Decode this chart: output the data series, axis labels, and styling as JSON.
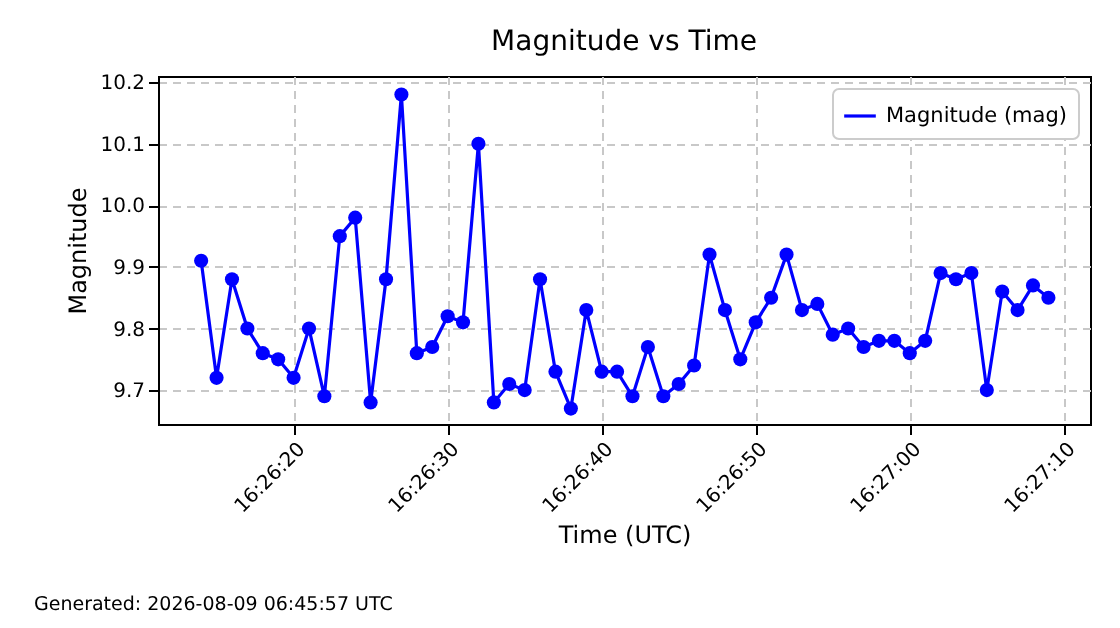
{
  "chart_data": {
    "type": "line",
    "title": "Magnitude vs Time",
    "xlabel": "Time (UTC)",
    "ylabel": "Magnitude",
    "annotations": [
      "Generated: 2026-08-09 06:45:57 UTC"
    ],
    "x": [
      16.437222,
      16.4375,
      16.437778,
      16.438056,
      16.438333,
      16.438611,
      16.438889,
      16.439167,
      16.439444,
      16.439722,
      16.44,
      16.440278,
      16.440556,
      16.440833,
      16.441111,
      16.441389,
      16.441667,
      16.441944,
      16.442222,
      16.4425,
      16.442778,
      16.443056,
      16.443333,
      16.443611,
      16.443889,
      16.444167,
      16.444444,
      16.444722,
      16.445,
      16.445278,
      16.445556,
      16.445833,
      16.446111,
      16.446389,
      16.446667,
      16.446944,
      16.447222,
      16.4475,
      16.447778,
      16.448056,
      16.448333,
      16.448611,
      16.448889,
      16.449167,
      16.449444,
      16.449722,
      16.45,
      16.450278,
      16.450556,
      16.450833,
      16.451111,
      16.451389,
      16.451667,
      16.451944,
      16.452222,
      16.4525
    ],
    "series": [
      {
        "name": "Magnitude (mag)",
        "color": "#0000ff",
        "values": [
          9.91,
          9.72,
          9.88,
          9.8,
          9.76,
          9.75,
          9.72,
          9.8,
          9.69,
          9.95,
          9.98,
          9.68,
          9.88,
          10.18,
          9.76,
          9.77,
          9.82,
          9.81,
          10.1,
          9.68,
          9.71,
          9.7,
          9.88,
          9.73,
          9.67,
          9.83,
          9.73,
          9.73,
          9.69,
          9.77,
          9.69,
          9.71,
          9.74,
          9.92,
          9.83,
          9.75,
          9.81,
          9.85,
          9.92,
          9.83,
          9.84,
          9.79,
          9.8,
          9.77,
          9.78,
          9.78,
          9.76,
          9.78,
          9.89,
          9.88,
          9.89,
          9.7,
          9.86,
          9.83,
          9.87,
          9.85
        ]
      }
    ],
    "xlim": [
      16.436444,
      16.45325
    ],
    "xticks": [
      {
        "value": 16.438889,
        "label": "16:26:20"
      },
      {
        "value": 16.441667,
        "label": "16:26:30"
      },
      {
        "value": 16.444444,
        "label": "16:26:40"
      },
      {
        "value": 16.447222,
        "label": "16:26:50"
      },
      {
        "value": 16.45,
        "label": "16:27:00"
      },
      {
        "value": 16.452778,
        "label": "16:27:10"
      }
    ],
    "ylim": [
      9.645,
      10.21
    ],
    "yticks": [
      9.7,
      9.8,
      9.9,
      {
        "value": 10,
        "label": "10.0"
      },
      10.1,
      10.2
    ],
    "grid": true,
    "legend": "top right",
    "marker": "circle",
    "line_style": "solid"
  }
}
